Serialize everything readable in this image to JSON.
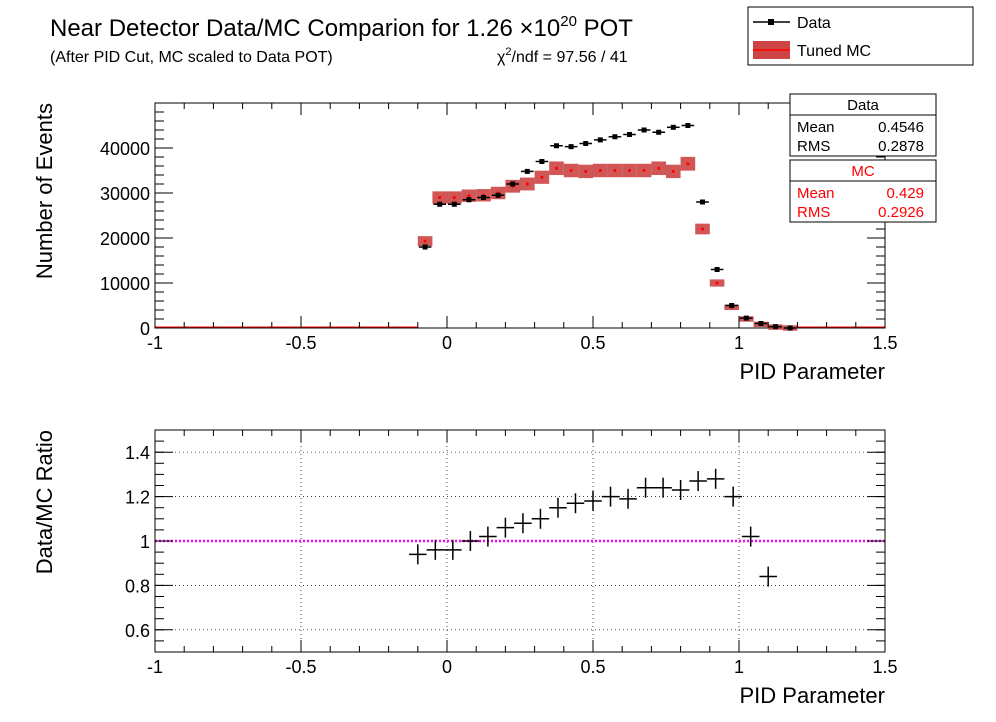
{
  "header": {
    "title_main": "Near Detector Data/MC Comparion for 1.26 ×10",
    "title_exp": "20",
    "title_tail": " POT",
    "subtitle": "(After PID Cut, MC scaled to Data POT)",
    "chi2_chi": "χ",
    "chi2_sup": "2",
    "chi2_rest": "/ndf = 97.56 / 41"
  },
  "legend": {
    "data_label": "Data",
    "mc_label": "Tuned MC"
  },
  "stats": {
    "data": {
      "title": "Data",
      "mean_label": "Mean",
      "mean_value": "0.4546",
      "rms_label": "RMS",
      "rms_value": "0.2878"
    },
    "mc": {
      "title": "MC",
      "mean_label": "Mean",
      "mean_value": "0.429",
      "rms_label": "RMS",
      "rms_value": "0.2926"
    }
  },
  "colors": {
    "data": "#000000",
    "mc_fill": "#cc4444",
    "mc_point": "#ff0000",
    "ratio_line": "#ff00ff",
    "stats_mc_text": "#ff0000"
  },
  "chart_data": [
    {
      "type": "scatter",
      "xlabel": "PID Parameter",
      "ylabel": "Number of Events",
      "xlim": [
        -1,
        1.5
      ],
      "ylim": [
        0,
        50000
      ],
      "grid": false,
      "legend_position": "top-right",
      "x_ticks": [
        "-1",
        "-0.5",
        "0",
        "0.5",
        "1",
        "1.5"
      ],
      "y_ticks": [
        "0",
        "10000",
        "20000",
        "30000",
        "40000"
      ],
      "bin_width": 0.05,
      "series": [
        {
          "name": "Data",
          "x": [
            -0.075,
            -0.025,
            0.025,
            0.075,
            0.125,
            0.175,
            0.225,
            0.275,
            0.325,
            0.375,
            0.425,
            0.475,
            0.525,
            0.575,
            0.625,
            0.675,
            0.725,
            0.775,
            0.825,
            0.875,
            0.925,
            0.975,
            1.025,
            1.075,
            1.125,
            1.175
          ],
          "y": [
            18000,
            27500,
            27500,
            28500,
            29000,
            29500,
            32000,
            34800,
            37000,
            40500,
            40300,
            41000,
            41800,
            42500,
            43000,
            44000,
            43500,
            44600,
            45000,
            28000,
            13000,
            5000,
            2200,
            1000,
            300,
            0
          ]
        },
        {
          "name": "Tuned MC",
          "x": [
            -0.075,
            -0.025,
            0.025,
            0.075,
            0.125,
            0.175,
            0.225,
            0.275,
            0.325,
            0.375,
            0.425,
            0.475,
            0.525,
            0.575,
            0.625,
            0.675,
            0.725,
            0.775,
            0.825,
            0.875,
            0.925,
            0.975,
            1.025,
            1.075,
            1.125,
            1.175
          ],
          "y": [
            19300,
            29000,
            29000,
            29400,
            29500,
            30000,
            31500,
            32000,
            33500,
            35500,
            35000,
            34800,
            35000,
            35000,
            35000,
            35000,
            35500,
            34800,
            36500,
            22000,
            10000,
            4600,
            2000,
            800,
            200,
            0
          ]
        }
      ]
    },
    {
      "type": "scatter",
      "xlabel": "PID Parameter",
      "ylabel": "Data/MC Ratio",
      "xlim": [
        -1,
        1.5
      ],
      "ylim": [
        0.5,
        1.5
      ],
      "grid": true,
      "x_ticks": [
        "-1",
        "-0.5",
        "0",
        "0.5",
        "1",
        "1.5"
      ],
      "y_ticks": [
        "0.6",
        "0.8",
        "1",
        "1.2",
        "1.4"
      ],
      "reference_line": 1,
      "series": [
        {
          "name": "Data/MC Ratio",
          "x": [
            -0.1,
            -0.04,
            0.02,
            0.08,
            0.14,
            0.2,
            0.26,
            0.32,
            0.38,
            0.44,
            0.5,
            0.56,
            0.62,
            0.68,
            0.74,
            0.8,
            0.86,
            0.92,
            0.98,
            1.04,
            1.1
          ],
          "y": [
            0.94,
            0.96,
            0.96,
            1.0,
            1.02,
            1.06,
            1.08,
            1.1,
            1.15,
            1.17,
            1.18,
            1.2,
            1.19,
            1.24,
            1.24,
            1.23,
            1.27,
            1.28,
            1.2,
            1.02,
            0.84
          ],
          "yerr": [
            0.045,
            0.045,
            0.045,
            0.045,
            0.045,
            0.045,
            0.045,
            0.045,
            0.045,
            0.045,
            0.045,
            0.045,
            0.045,
            0.045,
            0.045,
            0.045,
            0.045,
            0.045,
            0.045,
            0.045,
            0.045
          ]
        }
      ]
    }
  ]
}
